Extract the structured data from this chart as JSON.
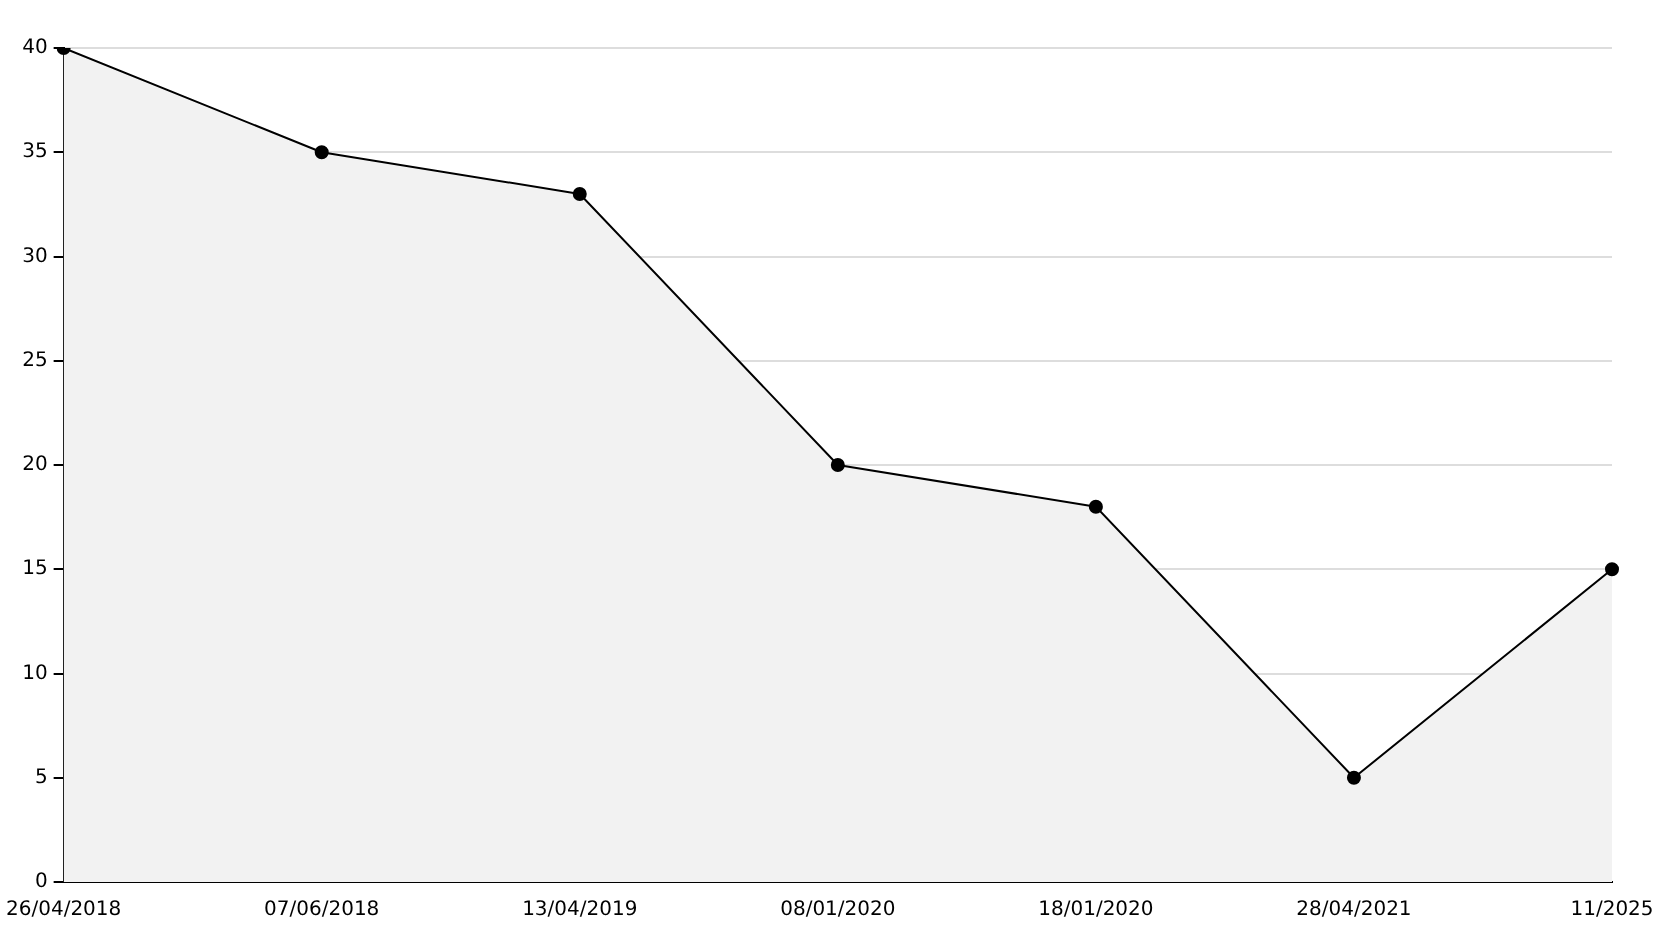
{
  "chart_data": {
    "type": "area",
    "categories": [
      "26/04/2018",
      "07/06/2018",
      "13/04/2019",
      "08/01/2020",
      "18/01/2020",
      "28/04/2021",
      "11/2025"
    ],
    "series": [
      {
        "color": "#000000",
        "values": [
          40,
          35,
          33,
          20,
          18,
          5,
          15
        ]
      }
    ],
    "ylim": [
      0,
      40
    ],
    "yticks": [
      0,
      5,
      10,
      15,
      20,
      25,
      30,
      35,
      40
    ],
    "grid": "y",
    "marker": "circle",
    "line_style": "solid",
    "legend": false
  }
}
